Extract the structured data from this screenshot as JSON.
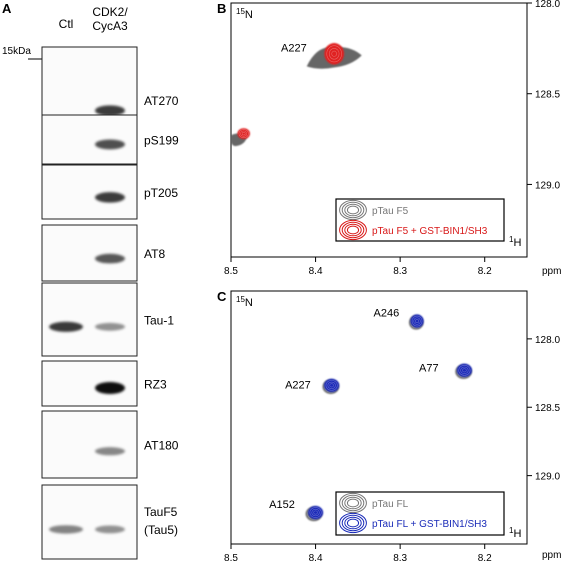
{
  "panel_a": {
    "letter": "A",
    "col_ctl": "Ctl",
    "col_cdk_1": "CDK2/",
    "col_cdk_2": "CycA3",
    "marker": "15kDa",
    "blots": [
      {
        "label": "AT270",
        "ctl": 0.0,
        "cdk": 0.75
      },
      {
        "label": "pS199",
        "ctl": 0.0,
        "cdk": 0.65
      },
      {
        "label": "pT205",
        "ctl": 0.0,
        "cdk": 0.75
      },
      {
        "label": "AT8",
        "ctl": 0.0,
        "cdk": 0.6
      },
      {
        "label": "Tau-1",
        "ctl": 0.8,
        "cdk": 0.3
      },
      {
        "label": "RZ3",
        "ctl": 0.0,
        "cdk": 1.0
      },
      {
        "label": "AT180",
        "ctl": 0.0,
        "cdk": 0.35
      },
      {
        "label": "TauF5",
        "label2": "(Tau5)",
        "ctl": 0.35,
        "cdk": 0.3
      }
    ]
  },
  "panel_b": {
    "letter": "B",
    "nucleus_y": "15",
    "nucleus_y_sym": "N",
    "nucleus_x": "1",
    "nucleus_x_sym": "H",
    "x_unit": "ppm",
    "x_ticks": [
      "8.5",
      "8.4",
      "8.3",
      "8.2"
    ],
    "y_ticks": [
      "128.0",
      "128.5",
      "129.0"
    ],
    "peak_labels": [
      {
        "text": "A227"
      }
    ],
    "legend": [
      {
        "text": "pTau F5",
        "color": "#777777"
      },
      {
        "text": "pTau F5 + GST-BIN1/SH3",
        "color": "#d81818"
      }
    ]
  },
  "panel_c": {
    "letter": "C",
    "nucleus_y": "15",
    "nucleus_y_sym": "N",
    "nucleus_x": "1",
    "nucleus_x_sym": "H",
    "x_unit": "ppm",
    "x_ticks": [
      "8.5",
      "8.4",
      "8.3",
      "8.2"
    ],
    "y_ticks": [
      "128.0",
      "128.5",
      "129.0"
    ],
    "peak_labels": [
      {
        "text": "A246"
      },
      {
        "text": "A227"
      },
      {
        "text": "A77"
      },
      {
        "text": "A152"
      }
    ],
    "legend": [
      {
        "text": "pTau FL",
        "color": "#777777"
      },
      {
        "text": "pTau FL + GST-BIN1/SH3",
        "color": "#1a2bb8"
      }
    ]
  },
  "chart_data": [
    {
      "type": "scatter",
      "xlabel": "ppm",
      "ylabel": "",
      "xlim": [
        8.5,
        8.15
      ],
      "ylim": [
        128.0,
        129.4
      ],
      "series": [
        {
          "name": "pTau F5",
          "color": "#666666",
          "points": [
            {
              "x": 8.375,
              "y": 128.3,
              "label": "A227"
            },
            {
              "x": 8.495,
              "y": 128.75,
              "label": ""
            }
          ]
        },
        {
          "name": "pTau F5 + GST-BIN1/SH3",
          "color": "#e02020",
          "points": [
            {
              "x": 8.378,
              "y": 128.28,
              "label": "A227"
            },
            {
              "x": 8.485,
              "y": 128.72,
              "label": ""
            }
          ]
        }
      ]
    },
    {
      "type": "scatter",
      "xlabel": "ppm",
      "ylabel": "",
      "xlim": [
        8.5,
        8.15
      ],
      "ylim": [
        127.65,
        129.5
      ],
      "series": [
        {
          "name": "pTau FL",
          "color": "#777777",
          "points": [
            {
              "x": 8.281,
              "y": 127.88,
              "label": "A246"
            },
            {
              "x": 8.382,
              "y": 128.35,
              "label": "A227"
            },
            {
              "x": 8.225,
              "y": 128.24,
              "label": "A77"
            },
            {
              "x": 8.402,
              "y": 129.28,
              "label": "A152"
            }
          ]
        },
        {
          "name": "pTau FL + GST-BIN1/SH3",
          "color": "#1a2bb8",
          "points": [
            {
              "x": 8.28,
              "y": 127.87,
              "label": "A246"
            },
            {
              "x": 8.381,
              "y": 128.34,
              "label": "A227"
            },
            {
              "x": 8.224,
              "y": 128.23,
              "label": "A77"
            },
            {
              "x": 8.4,
              "y": 129.27,
              "label": "A152"
            }
          ]
        }
      ]
    }
  ]
}
